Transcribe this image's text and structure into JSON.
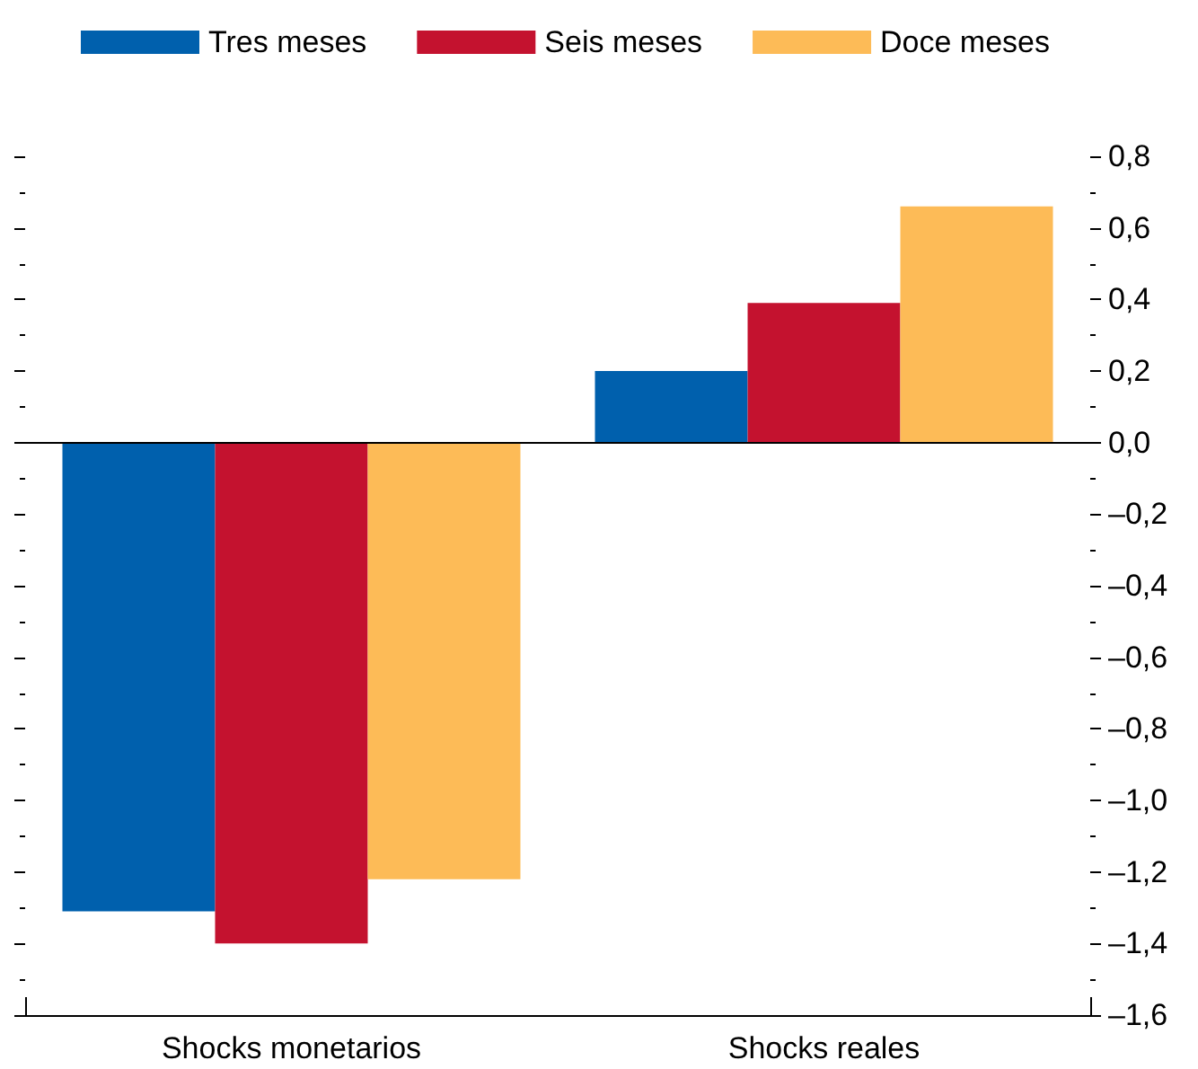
{
  "chart_data": {
    "type": "bar",
    "categories": [
      "Shocks monetarios",
      "Shocks reales"
    ],
    "series": [
      {
        "name": "Tres meses",
        "color": "#0060ad",
        "values": [
          -1.31,
          0.2
        ]
      },
      {
        "name": "Seis meses",
        "color": "#c4122f",
        "values": [
          -1.4,
          0.39
        ]
      },
      {
        "name": "Doce meses",
        "color": "#fdbb57",
        "values": [
          -1.22,
          0.66
        ]
      }
    ],
    "ylim": [
      -1.6,
      0.8
    ],
    "yticks": [
      {
        "value": -1.6,
        "label": "–1,6"
      },
      {
        "value": -1.4,
        "label": "–1,4"
      },
      {
        "value": -1.2,
        "label": "–1,2"
      },
      {
        "value": -1.0,
        "label": "–1,0"
      },
      {
        "value": -0.8,
        "label": "–0,8"
      },
      {
        "value": -0.6,
        "label": "–0,6"
      },
      {
        "value": -0.4,
        "label": "–0,4"
      },
      {
        "value": -0.2,
        "label": "–0,2"
      },
      {
        "value": 0,
        "label": "0,0"
      },
      {
        "value": 0.2,
        "label": "0,2"
      },
      {
        "value": 0.4,
        "label": "0,4"
      },
      {
        "value": 0.6,
        "label": "0,6"
      },
      {
        "value": 0.8,
        "label": "0,8"
      }
    ],
    "ref_lines": [
      {
        "axis": "y",
        "value": 0,
        "color": "#000000"
      }
    ],
    "grid": false,
    "legend": "top left"
  }
}
